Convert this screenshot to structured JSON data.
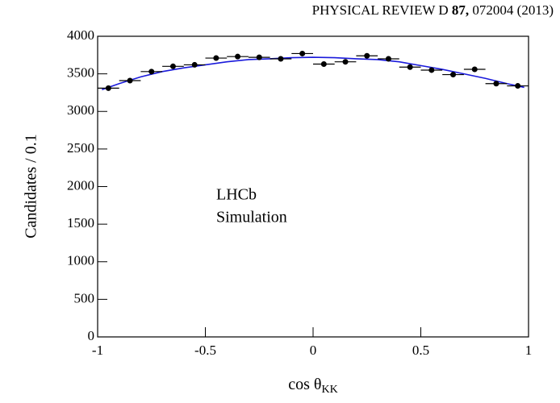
{
  "header": {
    "journal": "PHYSICAL REVIEW D",
    "volume": "87,",
    "rest": "072004 (2013)"
  },
  "chart_data": {
    "type": "scatter",
    "y_label": "Candidates / 0.1",
    "x_label": "cos θ",
    "x_label_subscript": "KK",
    "annotations": [
      "LHCb",
      "Simulation"
    ],
    "x": [
      -0.95,
      -0.85,
      -0.75,
      -0.65,
      -0.55,
      -0.45,
      -0.35,
      -0.25,
      -0.15,
      -0.05,
      0.05,
      0.15,
      0.25,
      0.35,
      0.45,
      0.55,
      0.65,
      0.75,
      0.85,
      0.95
    ],
    "values": [
      3310,
      3410,
      3530,
      3600,
      3620,
      3710,
      3730,
      3720,
      3700,
      3770,
      3630,
      3660,
      3740,
      3700,
      3590,
      3550,
      3490,
      3560,
      3370,
      3340
    ],
    "bin_width": 0.1,
    "color": "#000000",
    "curve": {
      "color": "#1a1adb",
      "x": [
        -0.98,
        -0.9,
        -0.8,
        -0.7,
        -0.6,
        -0.5,
        -0.4,
        -0.3,
        -0.2,
        -0.1,
        0,
        0.1,
        0.2,
        0.3,
        0.4,
        0.5,
        0.6,
        0.7,
        0.8,
        0.9,
        0.98
      ],
      "values": [
        3290,
        3370,
        3460,
        3530,
        3580,
        3620,
        3660,
        3690,
        3700,
        3715,
        3720,
        3715,
        3700,
        3690,
        3660,
        3610,
        3560,
        3500,
        3440,
        3370,
        3320
      ]
    },
    "xlim": [
      -1,
      1
    ],
    "xticks": [
      -1,
      -0.5,
      0,
      0.5,
      1
    ],
    "ylim": [
      0,
      4000
    ],
    "yticks": [
      0,
      500,
      1000,
      1500,
      2000,
      2500,
      3000,
      3500,
      4000
    ]
  }
}
